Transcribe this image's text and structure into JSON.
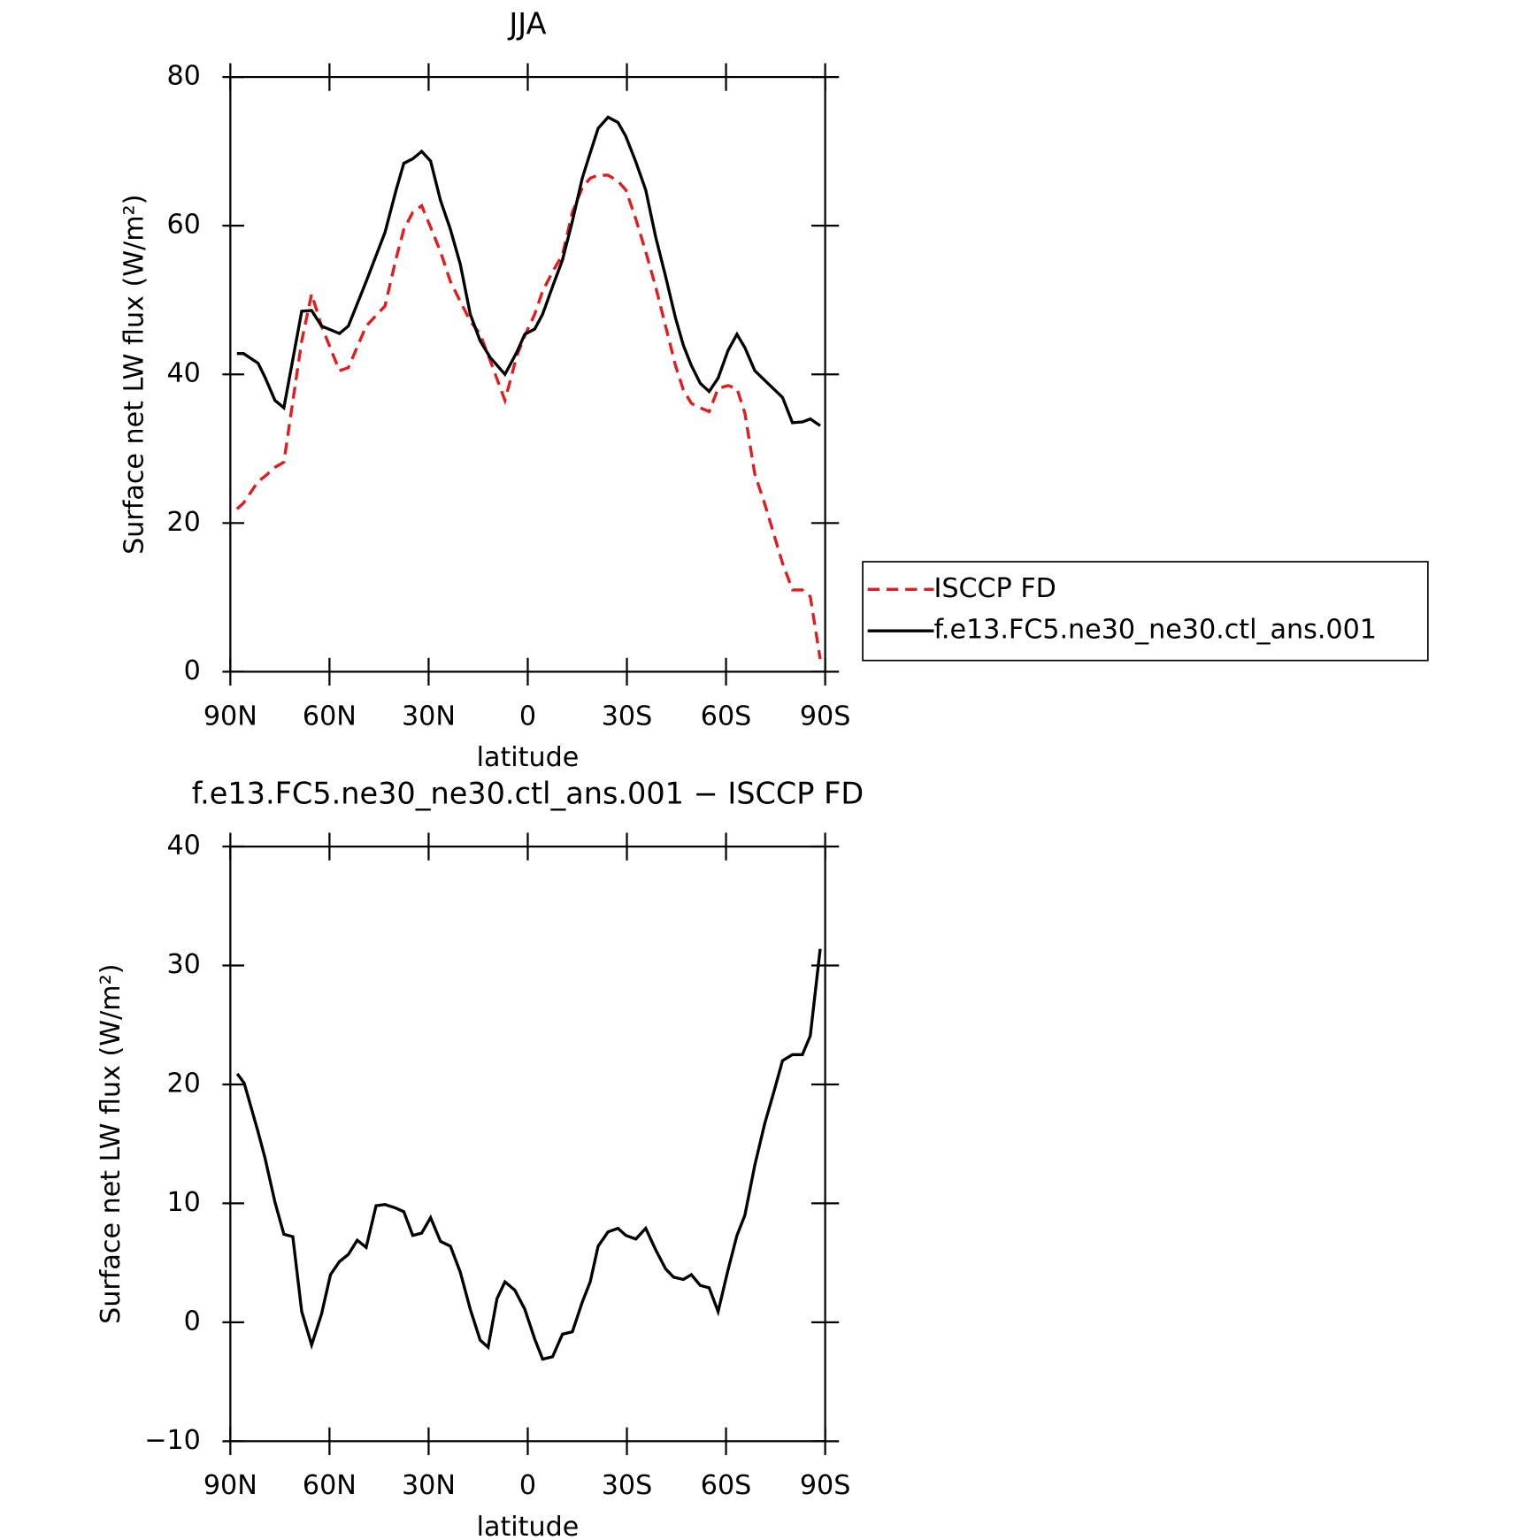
{
  "chart_data": [
    {
      "type": "line",
      "title": "JJA",
      "xlabel": "latitude",
      "ylabel": "Surface net LW flux (W/m²)",
      "x": [
        88,
        86,
        81.6,
        79.5,
        76.5,
        73.8,
        68.4,
        65.4,
        62.4,
        57,
        54.3,
        48.9,
        43.2,
        39.9,
        37.5,
        34.8,
        32.1,
        29.4,
        26.4,
        23.4,
        20.4,
        17.4,
        14.4,
        11.4,
        6.9,
        3.3,
        0.9,
        -2.1,
        -4.5,
        -7.5,
        -10.5,
        -13.5,
        -16.5,
        -18.9,
        -21.3,
        -24.3,
        -27.3,
        -29.7,
        -32.7,
        -35.7,
        -38.7,
        -41.7,
        -44.7,
        -47.1,
        -49.5,
        -52.2,
        -54.9,
        -57.6,
        -60.6,
        -63.3,
        -65.7,
        -68.7,
        -71.7,
        -77.1,
        -80.1,
        -83.1,
        -85.5,
        -88.5
      ],
      "series": [
        {
          "name": "ISCCP FD",
          "color": "#e41a1c",
          "linestyle": "dashed",
          "values": [
            21.9,
            22.7,
            25.6,
            26.3,
            27.5,
            28.2,
            44.5,
            50.8,
            46.5,
            40.5,
            40.9,
            46.5,
            49.2,
            55.5,
            59.5,
            61.8,
            62.7,
            59.8,
            56.5,
            52.5,
            49.8,
            47.2,
            45.4,
            41.9,
            36.5,
            42.5,
            45.2,
            48.1,
            51.2,
            53.8,
            56.1,
            61.8,
            65.1,
            66.4,
            66.8,
            66.8,
            66,
            64.8,
            60.9,
            56.5,
            51.8,
            46.5,
            41.2,
            37.9,
            36.1,
            35.5,
            35,
            38.1,
            38.5,
            38.1,
            34.8,
            26.6,
            22.6,
            14.6,
            11,
            11,
            10.1,
            1.7
          ]
        },
        {
          "name": "f.e13.FC5.ne30_ne30.ctl_ans.001",
          "color": "#000000",
          "linestyle": "solid",
          "values": [
            42.8,
            42.8,
            41.5,
            39.6,
            36.5,
            35.5,
            48.5,
            48.6,
            46.5,
            45.5,
            46.5,
            52.5,
            59.1,
            64.7,
            68.4,
            69,
            70,
            68.7,
            63.4,
            59.5,
            54.8,
            48.1,
            44.5,
            42.3,
            40,
            43,
            45.4,
            46.1,
            48.1,
            51.8,
            55.4,
            60.6,
            66.4,
            69.8,
            73.1,
            74.6,
            73.9,
            72,
            68.6,
            64.8,
            58.5,
            53.2,
            47.6,
            43.9,
            41.2,
            38.8,
            37.7,
            39.5,
            43.2,
            45.4,
            43.6,
            40.5,
            39.2,
            36.9,
            33.5,
            33.6,
            34,
            33.1
          ]
        }
      ],
      "xlim": [
        90,
        -90
      ],
      "xticks": [
        {
          "value": 90,
          "label": "90N"
        },
        {
          "value": 60,
          "label": "60N"
        },
        {
          "value": 30,
          "label": "30N"
        },
        0,
        {
          "value": -30,
          "label": "30S"
        },
        {
          "value": -60,
          "label": "60S"
        },
        {
          "value": -90,
          "label": "90S"
        }
      ],
      "ylim": [
        0,
        80
      ],
      "yticks": [
        0,
        20,
        40,
        60,
        80
      ],
      "legend": "right"
    },
    {
      "type": "line",
      "title": "f.e13.FC5.ne30_ne30.ctl_ans.001 − ISCCP FD",
      "xlabel": "latitude",
      "ylabel": "Surface net LW flux (W/m²)",
      "x": [
        87.9,
        85.8,
        81.6,
        79.5,
        76.5,
        73.8,
        71.1,
        68.4,
        65.4,
        62.4,
        59.7,
        57,
        54.3,
        51.6,
        48.9,
        45.9,
        43.2,
        39.9,
        37.5,
        34.8,
        32.1,
        29.4,
        26.4,
        23.4,
        20.4,
        17.4,
        14.4,
        12,
        9.3,
        6.9,
        3.9,
        0.9,
        -2.1,
        -4.5,
        -7.5,
        -10.5,
        -13.5,
        -16.5,
        -18.9,
        -21.3,
        -24.3,
        -27.3,
        -29.7,
        -32.7,
        -35.7,
        -38.7,
        -41.7,
        -44.1,
        -47.1,
        -49.5,
        -52.2,
        -54.9,
        -57.6,
        -60.6,
        -63.3,
        -65.7,
        -68.7,
        -71.7,
        -74.4,
        -77.1,
        -80.1,
        -83.1,
        -85.5,
        -88.5
      ],
      "series": [
        {
          "color": "#000000",
          "linestyle": "solid",
          "values": [
            20.9,
            20.1,
            16,
            13.8,
            10.1,
            7.4,
            7.2,
            0.9,
            -1.9,
            0.7,
            4,
            5.1,
            5.7,
            6.9,
            6.3,
            9.8,
            9.9,
            9.6,
            9.3,
            7.3,
            7.5,
            8.8,
            6.8,
            6.4,
            4.2,
            1.1,
            -1.5,
            -2.1,
            2,
            3.4,
            2.7,
            1.1,
            -1.4,
            -3.1,
            -2.9,
            -1,
            -0.8,
            1.7,
            3.4,
            6.4,
            7.6,
            7.9,
            7.3,
            7,
            7.9,
            6.1,
            4.5,
            3.8,
            3.6,
            4,
            3.1,
            2.9,
            0.9,
            4.4,
            7.3,
            9,
            13.2,
            16.7,
            19.3,
            22,
            22.5,
            22.5,
            24.1,
            31.4
          ]
        }
      ],
      "xlim": [
        90,
        -90
      ],
      "xticks": [
        {
          "value": 90,
          "label": "90N"
        },
        {
          "value": 60,
          "label": "60N"
        },
        {
          "value": 30,
          "label": "30N"
        },
        0,
        {
          "value": -30,
          "label": "30S"
        },
        {
          "value": -60,
          "label": "60S"
        },
        {
          "value": -90,
          "label": "90S"
        }
      ],
      "ylim": [
        -10,
        40
      ],
      "yticks": [
        {
          "value": -10,
          "label": "−10"
        },
        0,
        10,
        20,
        30,
        40
      ]
    }
  ]
}
